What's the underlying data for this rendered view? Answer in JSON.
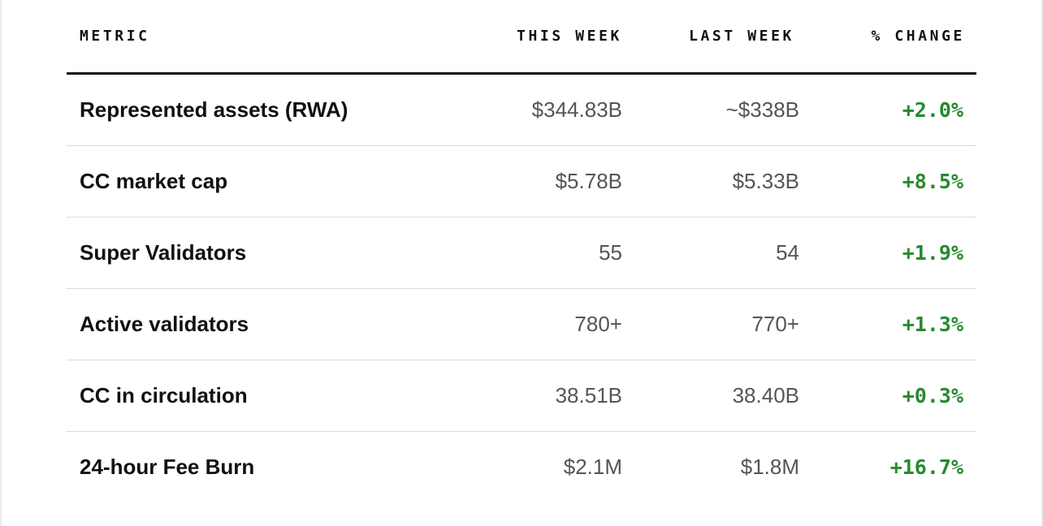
{
  "table": {
    "headers": {
      "metric": "METRIC",
      "this_week": "THIS WEEK",
      "last_week": "LAST WEEK",
      "change": "% CHANGE"
    },
    "rows": [
      {
        "metric": "Represented assets (RWA)",
        "this_week": "$344.83B",
        "last_week": "~$338B",
        "change": "+2.0%"
      },
      {
        "metric": "CC market cap",
        "this_week": "$5.78B",
        "last_week": "$5.33B",
        "change": "+8.5%"
      },
      {
        "metric": "Super Validators",
        "this_week": "55",
        "last_week": "54",
        "change": "+1.9%"
      },
      {
        "metric": "Active validators",
        "this_week": "780+",
        "last_week": "770+",
        "change": "+1.3%"
      },
      {
        "metric": "CC in circulation",
        "this_week": "38.51B",
        "last_week": "38.40B",
        "change": "+0.3%"
      },
      {
        "metric": "24-hour Fee Burn",
        "this_week": "$2.1M",
        "last_week": "$1.8M",
        "change": "+16.7%"
      }
    ]
  },
  "colors": {
    "positive_change": "#268a2d",
    "header_text": "#111111",
    "value_text": "#555555",
    "row_divider": "#dadada"
  }
}
